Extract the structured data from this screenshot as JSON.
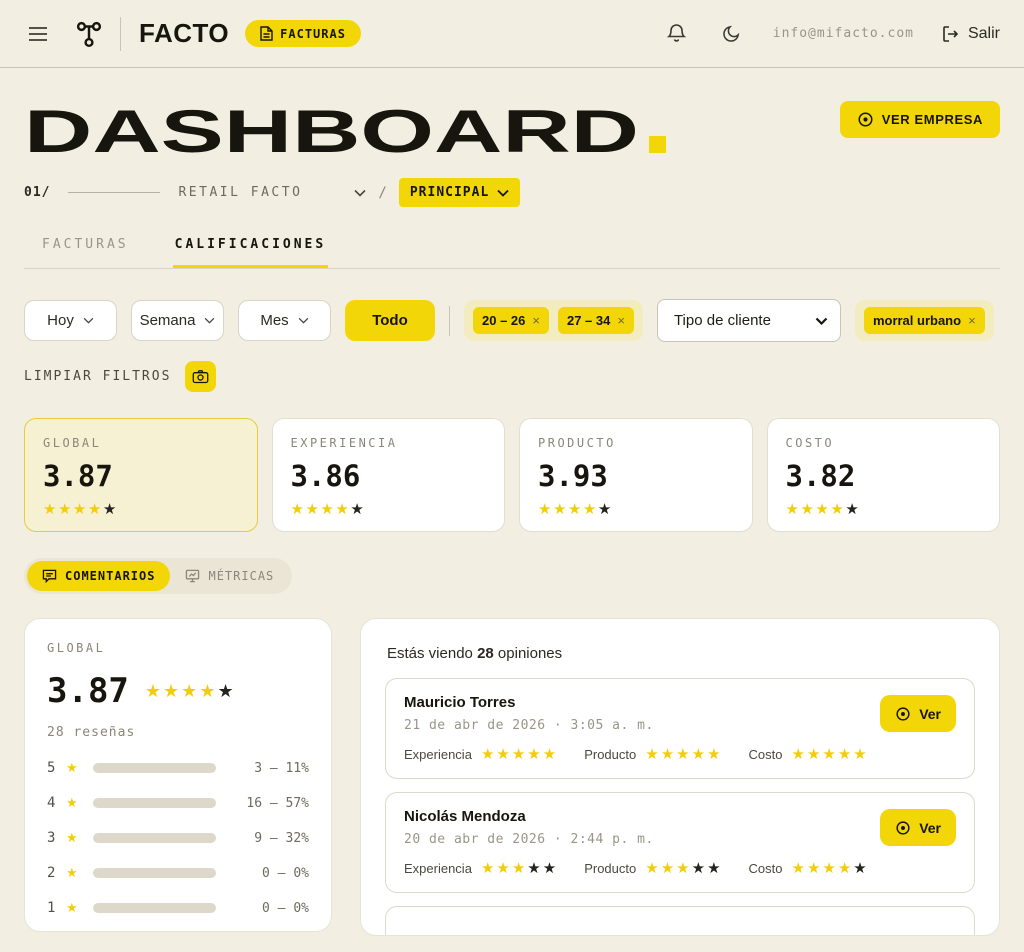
{
  "colors": {
    "accent": "#f2d608",
    "star_yellow": "#f2ce0a",
    "star_dark": "#25231d",
    "background": "#f2eee1"
  },
  "header": {
    "brand": "FACTO",
    "badge": "FACTURAS",
    "email": "info@mifacto.com",
    "logout_label": "Salir"
  },
  "page": {
    "title": "DASHBOARD",
    "ver_empresa": "VER EMPRESA",
    "breadcrumb": {
      "index": "01/",
      "company": "RETAIL FACTO",
      "section": "PRINCIPAL"
    },
    "tabs": [
      {
        "label": "FACTURAS",
        "active": false
      },
      {
        "label": "CALIFICACIONES",
        "active": true
      }
    ]
  },
  "filters": {
    "period_buttons": [
      "Hoy",
      "Semana",
      "Mes"
    ],
    "todo": "Todo",
    "age_chips": [
      "20 – 26",
      "27 – 34"
    ],
    "client_type_placeholder": "Tipo de cliente",
    "product_chips": [
      "morral urbano"
    ],
    "clear": "LIMPIAR FILTROS"
  },
  "score_cards": [
    {
      "label": "GLOBAL",
      "value": "3.87",
      "stars": 4,
      "highlight": true
    },
    {
      "label": "EXPERIENCIA",
      "value": "3.86",
      "stars": 4,
      "highlight": false
    },
    {
      "label": "PRODUCTO",
      "value": "3.93",
      "stars": 4,
      "highlight": false
    },
    {
      "label": "COSTO",
      "value": "3.82",
      "stars": 4,
      "highlight": false
    }
  ],
  "view_toggle": [
    {
      "label": "COMENTARIOS",
      "icon": "comment-icon",
      "active": true
    },
    {
      "label": "MÉTRICAS",
      "icon": "metrics-icon",
      "active": false
    }
  ],
  "summary": {
    "label": "GLOBAL",
    "value": "3.87",
    "stars": 4,
    "reviews": "28 reseñas",
    "distribution": [
      {
        "stars": "5",
        "value": "3 – 11%",
        "pct": 11
      },
      {
        "stars": "4",
        "value": "16 – 57%",
        "pct": 57
      },
      {
        "stars": "3",
        "value": "9 – 32%",
        "pct": 32
      },
      {
        "stars": "2",
        "value": "0 – 0%",
        "pct": 0
      },
      {
        "stars": "1",
        "value": "0 – 0%",
        "pct": 0
      }
    ]
  },
  "opinions": {
    "heading_prefix": "Estás viendo",
    "count": "28",
    "heading_suffix": "opiniones",
    "ver_label": "Ver",
    "labels": {
      "experiencia": "Experiencia",
      "producto": "Producto",
      "costo": "Costo"
    },
    "reviews": [
      {
        "name": "Mauricio Torres",
        "date": "21 de abr de 2026 · 3:05 a. m.",
        "experiencia": 5,
        "producto": 5,
        "costo": 5
      },
      {
        "name": "Nicolás Mendoza",
        "date": "20 de abr de 2026 · 2:44 p. m.",
        "experiencia": 3,
        "producto": 3,
        "costo": 4
      }
    ]
  }
}
